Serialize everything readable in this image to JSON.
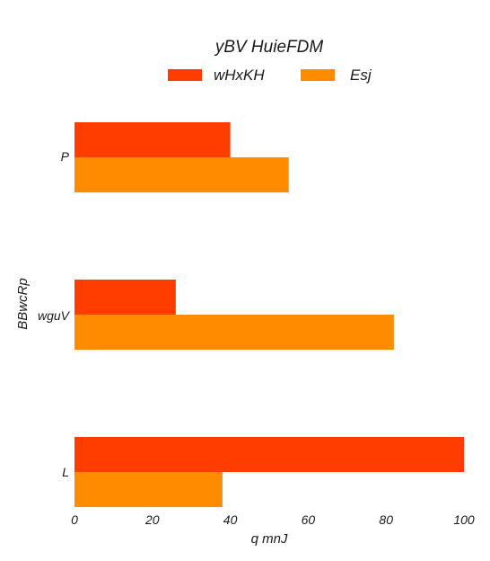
{
  "chart_data": {
    "type": "bar",
    "orientation": "horizontal",
    "legend_title": "yBV HuieFDM",
    "legend_position": "top-center",
    "categories": [
      "P",
      "wguV",
      "L"
    ],
    "series": [
      {
        "name": "wHxKH",
        "color": "#ff3d00",
        "values": [
          40,
          26,
          100
        ]
      },
      {
        "name": "Esj",
        "color": "#ff8c00",
        "values": [
          55,
          82,
          38
        ]
      }
    ],
    "xlabel": "q mnJ",
    "ylabel": "BBwcRp",
    "xlim": [
      0,
      100
    ],
    "xticks": [
      "0",
      "20",
      "40",
      "60",
      "80",
      "100"
    ],
    "grid": false
  }
}
